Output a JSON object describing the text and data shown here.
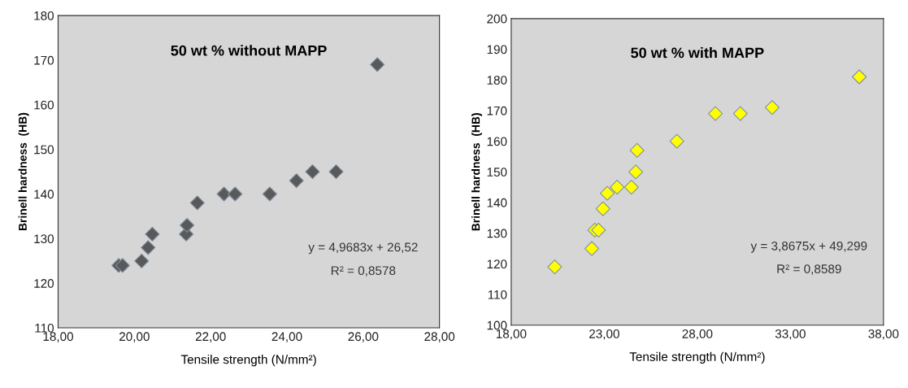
{
  "chart_data": [
    {
      "type": "scatter",
      "title": "50 wt % without MAPP",
      "xlabel": "Tensile strength (N/mm²)",
      "ylabel": "Brinell hardness  (HB)",
      "marker": "diamond",
      "grid": false,
      "x": [
        19.59,
        19.69,
        20.19,
        20.36,
        20.47,
        21.36,
        21.38,
        21.65,
        22.35,
        22.64,
        23.55,
        24.25,
        24.67,
        25.29,
        26.37
      ],
      "series": [
        {
          "color": "#595959",
          "values": [
            124,
            124,
            125,
            128,
            131,
            131,
            133,
            138,
            140,
            140,
            140,
            143,
            145,
            145,
            169
          ]
        }
      ],
      "xlim": [
        18,
        28
      ],
      "xticks": [
        {
          "value": 18,
          "label": "18,00"
        },
        {
          "value": 20,
          "label": "20,00"
        },
        {
          "value": 22,
          "label": "22,00"
        },
        {
          "value": 24,
          "label": "24,00"
        },
        {
          "value": 26,
          "label": "26,00"
        },
        {
          "value": 28,
          "label": "28,00"
        }
      ],
      "ylim": [
        110,
        180
      ],
      "yticks": [
        110,
        120,
        130,
        140,
        150,
        160,
        170,
        180
      ],
      "annotations": [
        "y = 4,9683x + 26,52",
        "R² = 0,8578"
      ]
    },
    {
      "type": "scatter",
      "title": "50 wt % with MAPP",
      "xlabel": "Tensile strength (N/mm²)",
      "ylabel": "Brinell hardness  (HB)",
      "marker": "diamond",
      "grid": false,
      "x": [
        20.34,
        22.33,
        22.49,
        22.69,
        22.93,
        23.16,
        23.69,
        24.46,
        24.69,
        24.76,
        26.9,
        28.97,
        30.31,
        32.02,
        36.7
      ],
      "series": [
        {
          "color": "#ffff00",
          "values": [
            119,
            125,
            131,
            131,
            138,
            143,
            145,
            145,
            150,
            157,
            160,
            169,
            169,
            171,
            181
          ]
        }
      ],
      "xlim": [
        18,
        38
      ],
      "xticks": [
        {
          "value": 18,
          "label": "18,00"
        },
        {
          "value": 23,
          "label": "23,00"
        },
        {
          "value": 28,
          "label": "28,00"
        },
        {
          "value": 33,
          "label": "33,00"
        },
        {
          "value": 38,
          "label": "38,00"
        }
      ],
      "ylim": [
        100,
        200
      ],
      "yticks": [
        100,
        110,
        120,
        130,
        140,
        150,
        160,
        170,
        180,
        190,
        200
      ],
      "annotations": [
        "y = 3,8675x + 49,299",
        "R² = 0,8589"
      ]
    }
  ]
}
